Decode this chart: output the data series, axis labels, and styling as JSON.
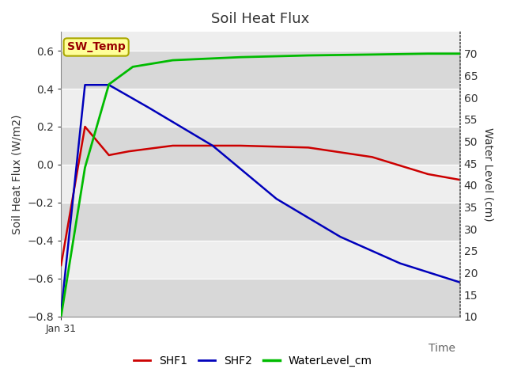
{
  "title": "Soil Heat Flux",
  "xlabel": "Time",
  "ylabel_left": "Soil Heat Flux (W/m2)",
  "ylabel_right": "Water Level (cm)",
  "x_tick_label": "Jan 31",
  "annotation_text": "SW_Temp",
  "annotation_box_facecolor": "#ffff99",
  "annotation_box_edgecolor": "#aaa800",
  "annotation_text_color": "#990000",
  "background_color": "#ffffff",
  "band_dark_color": "#d8d8d8",
  "band_light_color": "#eeeeee",
  "grid_line_color": "#cccccc",
  "right_axis_dotted_color": "#555555",
  "ylim_left": [
    -0.8,
    0.7
  ],
  "ylim_right": [
    10,
    75
  ],
  "yticks_left": [
    -0.8,
    -0.6,
    -0.4,
    -0.2,
    0.0,
    0.2,
    0.4,
    0.6
  ],
  "yticks_right": [
    10,
    15,
    20,
    25,
    30,
    35,
    40,
    45,
    50,
    55,
    60,
    65,
    70
  ],
  "shf1_color": "#cc0000",
  "shf2_color": "#0000bb",
  "water_color": "#00bb00",
  "legend_entries": [
    "SHF1",
    "SHF2",
    "WaterLevel_cm"
  ],
  "shf1_x": [
    0,
    0.06,
    0.12,
    0.17,
    0.28,
    0.45,
    0.62,
    0.78,
    0.92,
    1.0
  ],
  "shf1_y": [
    -0.53,
    0.2,
    0.05,
    0.07,
    0.1,
    0.1,
    0.09,
    0.04,
    -0.05,
    -0.08
  ],
  "shf2_x": [
    0,
    0.06,
    0.12,
    0.22,
    0.38,
    0.54,
    0.7,
    0.85,
    1.0
  ],
  "shf2_y": [
    -0.78,
    0.42,
    0.42,
    0.3,
    0.1,
    -0.18,
    -0.38,
    -0.52,
    -0.62
  ],
  "water_x": [
    0,
    0.06,
    0.12,
    0.18,
    0.28,
    0.45,
    0.62,
    0.78,
    0.92,
    1.0
  ],
  "water_y": [
    10,
    44,
    63,
    67,
    68.5,
    69.2,
    69.6,
    69.8,
    70,
    70
  ]
}
